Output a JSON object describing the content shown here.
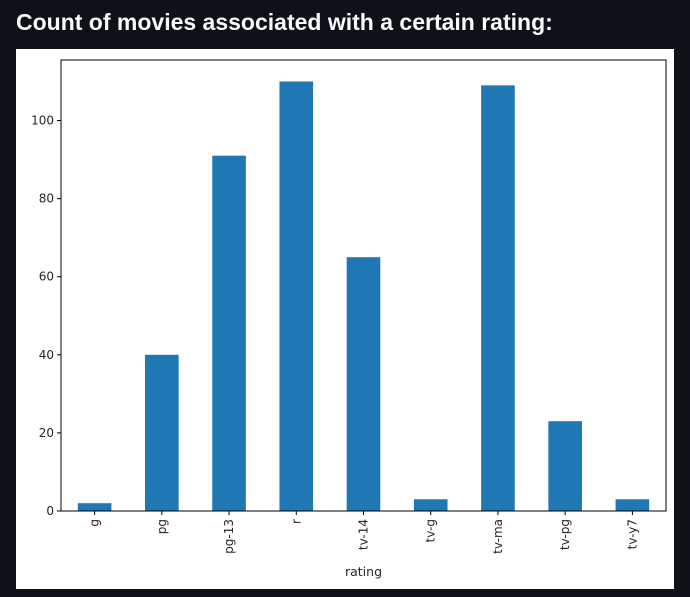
{
  "page": {
    "heading": "Count of movies associated with a certain rating:"
  },
  "chart_data": {
    "type": "bar",
    "categories": [
      "g",
      "pg",
      "pg-13",
      "r",
      "tv-14",
      "tv-g",
      "tv-ma",
      "tv-pg",
      "tv-y7"
    ],
    "values": [
      2,
      40,
      91,
      110,
      65,
      3,
      109,
      23,
      3
    ],
    "title": "",
    "xlabel": "rating",
    "ylabel": "",
    "ylim": [
      0,
      115.5
    ],
    "yticks": [
      0,
      20,
      40,
      60,
      80,
      100
    ],
    "grid": false,
    "bar_color": "#1f77b4"
  }
}
